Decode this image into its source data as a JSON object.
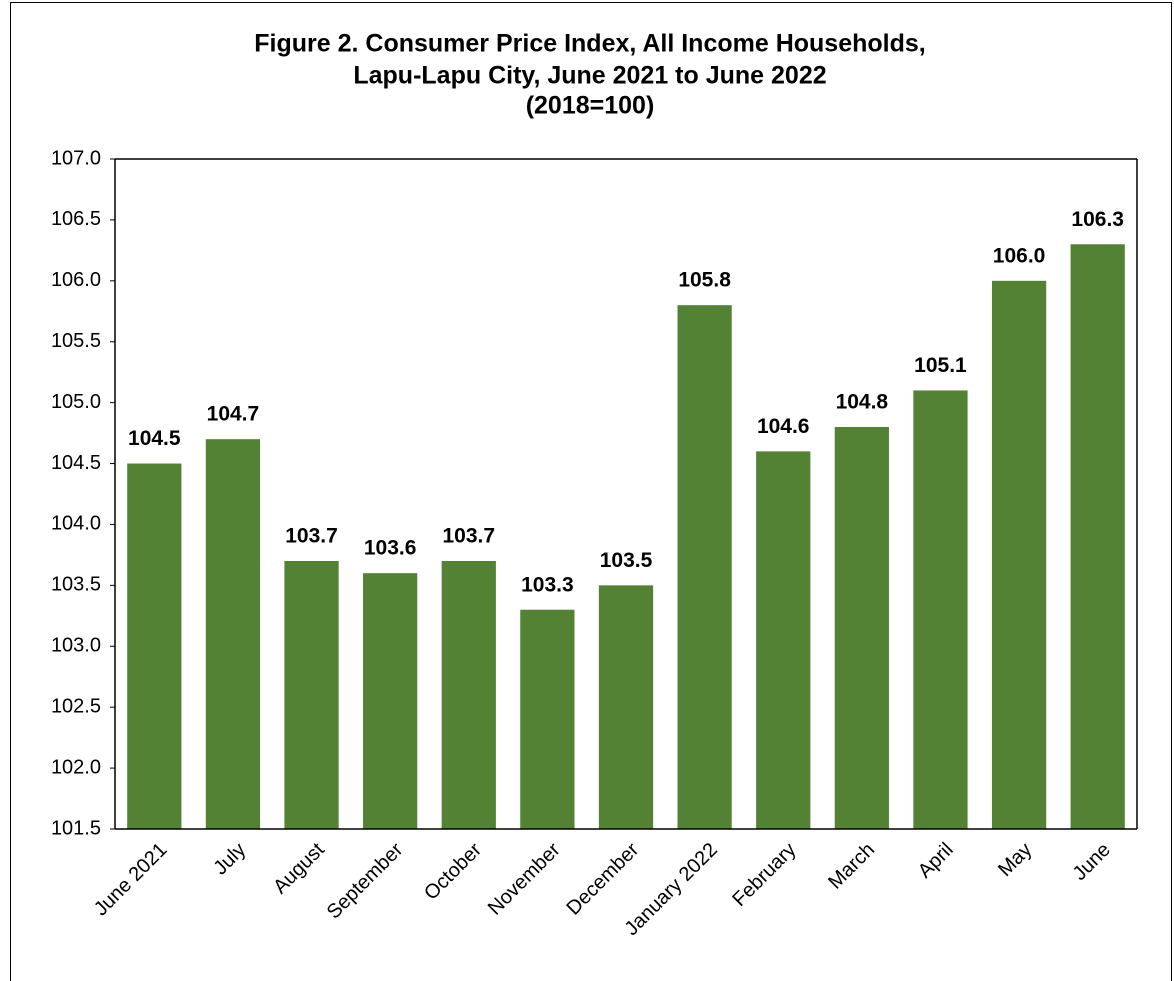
{
  "chart_data": {
    "type": "bar",
    "title": [
      "Figure 2. Consumer Price Index, All Income Households,",
      "Lapu-Lapu City, June 2021 to June 2022",
      "(2018=100)"
    ],
    "categories": [
      "June 2021",
      "July",
      "August",
      "September",
      "October",
      "November",
      "December",
      "January 2022",
      "February",
      "March",
      "April",
      "May",
      "June"
    ],
    "values": [
      104.5,
      104.7,
      103.7,
      103.6,
      103.7,
      103.3,
      103.5,
      105.8,
      104.6,
      104.8,
      105.1,
      106.0,
      106.3
    ],
    "value_labels": [
      "104.5",
      "104.7",
      "103.7",
      "103.6",
      "103.7",
      "103.3",
      "103.5",
      "105.8",
      "104.6",
      "104.8",
      "105.1",
      "106.0",
      "106.3"
    ],
    "color": "#548235",
    "ylim": [
      101.5,
      107
    ],
    "yticks": [
      {
        "value": 101.5,
        "label": "101.5"
      },
      {
        "value": 102,
        "label": "102.0"
      },
      {
        "value": 102.5,
        "label": "102.5"
      },
      {
        "value": 103,
        "label": "103.0"
      },
      {
        "value": 103.5,
        "label": "103.5"
      },
      {
        "value": 104,
        "label": "104.0"
      },
      {
        "value": 104.5,
        "label": "104.5"
      },
      {
        "value": 105,
        "label": "105.0"
      },
      {
        "value": 105.5,
        "label": "105.5"
      },
      {
        "value": 106,
        "label": "106.0"
      },
      {
        "value": 106.5,
        "label": "106.5"
      },
      {
        "value": 107,
        "label": "107.0"
      }
    ],
    "grid": false
  }
}
